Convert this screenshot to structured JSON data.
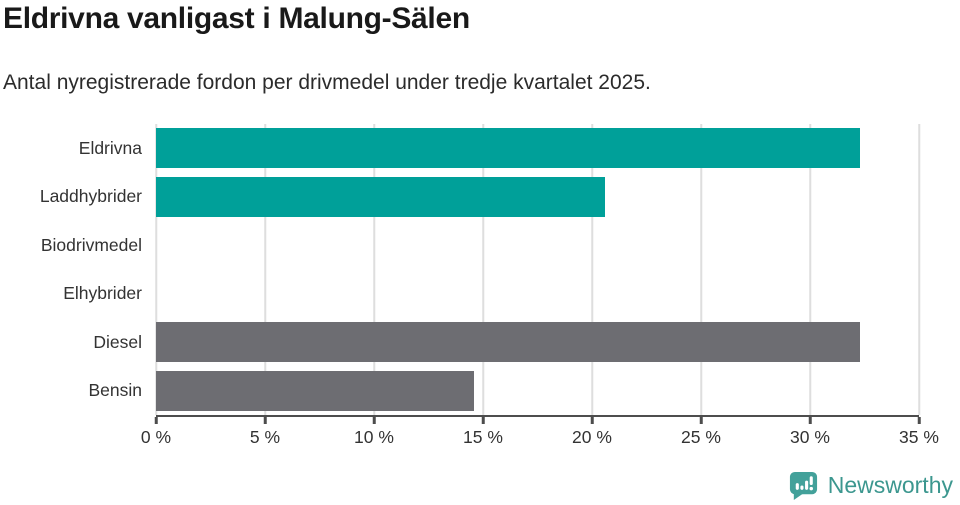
{
  "header": {
    "title": "Eldrivna vanligast i Malung-Sälen",
    "subtitle": "Antal nyregistrerade fordon per drivmedel under tredje kvartalet 2025."
  },
  "chart_data": {
    "type": "bar",
    "orientation": "horizontal",
    "title": "Eldrivna vanligast i Malung-Sälen",
    "subtitle": "Antal nyregistrerade fordon per drivmedel under tredje kvartalet 2025.",
    "categories": [
      "Eldrivna",
      "Laddhybrider",
      "Biodrivmedel",
      "Elhybrider",
      "Diesel",
      "Bensin"
    ],
    "values": [
      32.3,
      20.6,
      0,
      0,
      32.3,
      14.6
    ],
    "unit": "%",
    "bar_colors": [
      "#00a099",
      "#00a099",
      "#00a099",
      "#00a099",
      "#6d6d72",
      "#6d6d72"
    ],
    "xlim": [
      0,
      35
    ],
    "xticks": [
      0,
      5,
      10,
      15,
      20,
      25,
      30,
      35
    ],
    "xtick_labels": [
      "0 %",
      "5 %",
      "10 %",
      "15 %",
      "20 %",
      "25 %",
      "30 %",
      "35 %"
    ],
    "xlabel": "",
    "ylabel": "",
    "grid": "vertical",
    "legend": "none"
  },
  "branding": {
    "text": "Newsworthy",
    "icon": "newsworthy-speech-bubble-bar-chart-icon",
    "color": "#3c978f"
  },
  "colors": {
    "teal": "#00a099",
    "gray": "#6d6d72",
    "axis": "#4d4d4d",
    "gridline": "#dedede",
    "text": "#333333",
    "title_text": "#191919"
  }
}
